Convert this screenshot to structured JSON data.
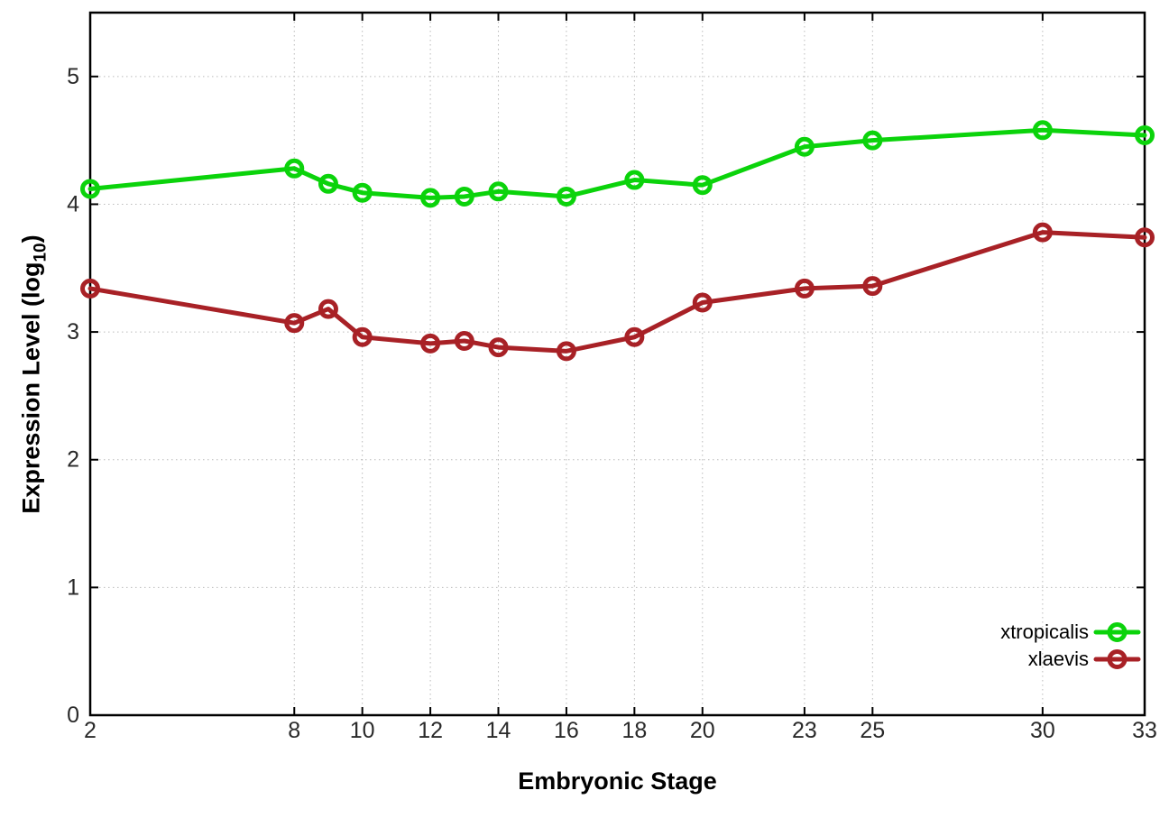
{
  "chart_data": {
    "type": "line",
    "title": "",
    "xlabel": "Embryonic Stage",
    "ylabel": "Expression Level (log10)",
    "ylabel_parts": {
      "prefix": "Expression Level (log",
      "subscript": "10",
      "suffix": ")"
    },
    "x": [
      2,
      8,
      9,
      10,
      12,
      13,
      14,
      16,
      18,
      20,
      23,
      25,
      30,
      33
    ],
    "series": [
      {
        "name": "xtropicalis",
        "color": "#0bd30b",
        "marker": "open-circle",
        "values": [
          4.12,
          4.28,
          4.16,
          4.09,
          4.05,
          4.06,
          4.1,
          4.06,
          4.19,
          4.15,
          4.45,
          4.5,
          4.58,
          4.54
        ]
      },
      {
        "name": "xlaevis",
        "color": "#a82126",
        "marker": "open-circle",
        "values": [
          3.34,
          3.07,
          3.18,
          2.96,
          2.91,
          2.93,
          2.88,
          2.85,
          2.96,
          3.23,
          3.34,
          3.36,
          3.78,
          3.74
        ]
      }
    ],
    "x_ticks": {
      "values": [
        2,
        8,
        10,
        12,
        14,
        16,
        18,
        20,
        23,
        25,
        30,
        33
      ],
      "labels": [
        "2",
        "8",
        "10",
        "12",
        "14",
        "16",
        "18",
        "20",
        "23",
        "25",
        "30",
        "33"
      ]
    },
    "y_ticks": {
      "values": [
        0,
        1,
        2,
        3,
        4,
        5
      ],
      "labels": [
        "0",
        "1",
        "2",
        "3",
        "4",
        "5"
      ]
    },
    "xlim": [
      2,
      33
    ],
    "ylim": [
      0,
      5.5
    ],
    "grid": true,
    "legend": {
      "position": "inside-bottom-right",
      "entries": [
        "xtropicalis",
        "xlaevis"
      ]
    },
    "colors": {
      "background": "#ffffff",
      "border": "#000000",
      "grid": "#bbbbbb",
      "tick_label": "#2a2a2a",
      "axis_title": "#000000"
    }
  }
}
